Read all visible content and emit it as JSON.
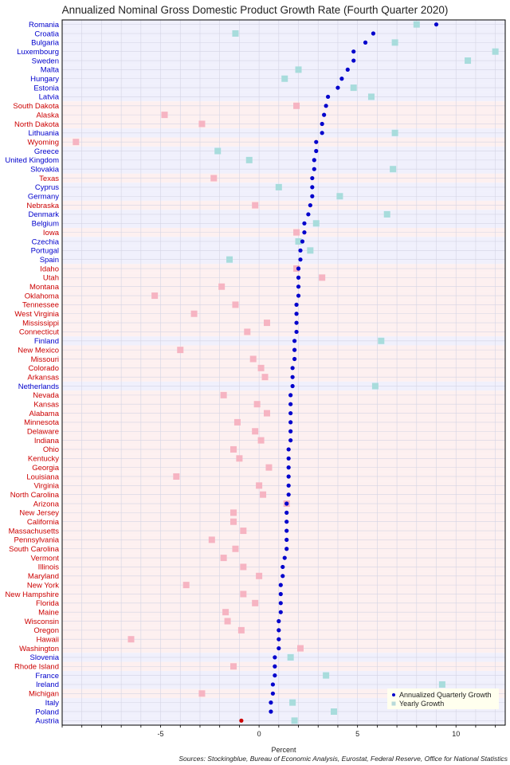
{
  "chart_data": {
    "type": "scatter",
    "title": "Annualized Nominal Gross Domestic Product Growth Rate (Fourth Quarter 2020)",
    "xlabel": "Percent",
    "source": "Sources: Stockingblue, Bureau of Economic Analysis, Eurostat, Federal Reserve, Office for National Statistics",
    "xlim": [
      -10,
      12.5
    ],
    "xticks": [
      -5,
      0,
      5,
      10
    ],
    "grid": true,
    "legend_position": "bottom-right",
    "colors": {
      "country_text": "#0000cc",
      "state_text": "#cc0000",
      "country_band": "#f0f0fc",
      "state_band": "#fdf0f0",
      "quarterly_point": "#0000cc",
      "highlight_point": "#cc0000",
      "yearly_country": "#a8dcdc",
      "yearly_state": "#f6b4c2"
    },
    "series": [
      {
        "name": "Annualized Quarterly Growth",
        "marker": "circle"
      },
      {
        "name": "Yearly Growth",
        "marker": "square"
      }
    ],
    "rows": [
      {
        "label": "Romania",
        "kind": "country",
        "quarterly": 9.0,
        "yearly": 8.0
      },
      {
        "label": "Croatia",
        "kind": "country",
        "quarterly": 5.8,
        "yearly": -1.2
      },
      {
        "label": "Bulgaria",
        "kind": "country",
        "quarterly": 5.4,
        "yearly": 6.9
      },
      {
        "label": "Luxembourg",
        "kind": "country",
        "quarterly": 4.8,
        "yearly": 12.0
      },
      {
        "label": "Sweden",
        "kind": "country",
        "quarterly": 4.8,
        "yearly": 10.6
      },
      {
        "label": "Malta",
        "kind": "country",
        "quarterly": 4.5,
        "yearly": 2.0
      },
      {
        "label": "Hungary",
        "kind": "country",
        "quarterly": 4.2,
        "yearly": 1.3
      },
      {
        "label": "Estonia",
        "kind": "country",
        "quarterly": 4.0,
        "yearly": 4.8
      },
      {
        "label": "Latvia",
        "kind": "country",
        "quarterly": 3.5,
        "yearly": 5.7
      },
      {
        "label": "South Dakota",
        "kind": "state",
        "quarterly": 3.4,
        "yearly": 1.9
      },
      {
        "label": "Alaska",
        "kind": "state",
        "quarterly": 3.3,
        "yearly": -4.8
      },
      {
        "label": "North Dakota",
        "kind": "state",
        "quarterly": 3.2,
        "yearly": -2.9
      },
      {
        "label": "Lithuania",
        "kind": "country",
        "quarterly": 3.2,
        "yearly": 6.9
      },
      {
        "label": "Wyoming",
        "kind": "state",
        "quarterly": 2.9,
        "yearly": -9.3
      },
      {
        "label": "Greece",
        "kind": "country",
        "quarterly": 2.9,
        "yearly": -2.1
      },
      {
        "label": "United Kingdom",
        "kind": "country",
        "quarterly": 2.8,
        "yearly": -0.5
      },
      {
        "label": "Slovakia",
        "kind": "country",
        "quarterly": 2.8,
        "yearly": 6.8
      },
      {
        "label": "Texas",
        "kind": "state",
        "quarterly": 2.7,
        "yearly": -2.3
      },
      {
        "label": "Cyprus",
        "kind": "country",
        "quarterly": 2.7,
        "yearly": 1.0
      },
      {
        "label": "Germany",
        "kind": "country",
        "quarterly": 2.7,
        "yearly": 4.1
      },
      {
        "label": "Nebraska",
        "kind": "state",
        "quarterly": 2.6,
        "yearly": -0.2
      },
      {
        "label": "Denmark",
        "kind": "country",
        "quarterly": 2.5,
        "yearly": 6.5
      },
      {
        "label": "Belgium",
        "kind": "country",
        "quarterly": 2.3,
        "yearly": 2.9
      },
      {
        "label": "Iowa",
        "kind": "state",
        "quarterly": 2.3,
        "yearly": 1.9
      },
      {
        "label": "Czechia",
        "kind": "country",
        "quarterly": 2.2,
        "yearly": 2.0
      },
      {
        "label": "Portugal",
        "kind": "country",
        "quarterly": 2.1,
        "yearly": 2.6
      },
      {
        "label": "Spain",
        "kind": "country",
        "quarterly": 2.1,
        "yearly": -1.5
      },
      {
        "label": "Idaho",
        "kind": "state",
        "quarterly": 2.0,
        "yearly": 1.9
      },
      {
        "label": "Utah",
        "kind": "state",
        "quarterly": 2.0,
        "yearly": 3.2
      },
      {
        "label": "Montana",
        "kind": "state",
        "quarterly": 2.0,
        "yearly": -1.9
      },
      {
        "label": "Oklahoma",
        "kind": "state",
        "quarterly": 2.0,
        "yearly": -5.3
      },
      {
        "label": "Tennessee",
        "kind": "state",
        "quarterly": 1.9,
        "yearly": -1.2
      },
      {
        "label": "West Virginia",
        "kind": "state",
        "quarterly": 1.9,
        "yearly": -3.3
      },
      {
        "label": "Mississippi",
        "kind": "state",
        "quarterly": 1.9,
        "yearly": 0.4
      },
      {
        "label": "Connecticut",
        "kind": "state",
        "quarterly": 1.9,
        "yearly": -0.6
      },
      {
        "label": "Finland",
        "kind": "country",
        "quarterly": 1.8,
        "yearly": 6.2
      },
      {
        "label": "New Mexico",
        "kind": "state",
        "quarterly": 1.8,
        "yearly": -4.0
      },
      {
        "label": "Missouri",
        "kind": "state",
        "quarterly": 1.8,
        "yearly": -0.3
      },
      {
        "label": "Colorado",
        "kind": "state",
        "quarterly": 1.7,
        "yearly": 0.1
      },
      {
        "label": "Arkansas",
        "kind": "state",
        "quarterly": 1.7,
        "yearly": 0.3
      },
      {
        "label": "Netherlands",
        "kind": "country",
        "quarterly": 1.7,
        "yearly": 5.9
      },
      {
        "label": "Nevada",
        "kind": "state",
        "quarterly": 1.6,
        "yearly": -1.8
      },
      {
        "label": "Kansas",
        "kind": "state",
        "quarterly": 1.6,
        "yearly": -0.1
      },
      {
        "label": "Alabama",
        "kind": "state",
        "quarterly": 1.6,
        "yearly": 0.4
      },
      {
        "label": "Minnesota",
        "kind": "state",
        "quarterly": 1.6,
        "yearly": -1.1
      },
      {
        "label": "Delaware",
        "kind": "state",
        "quarterly": 1.6,
        "yearly": -0.2
      },
      {
        "label": "Indiana",
        "kind": "state",
        "quarterly": 1.6,
        "yearly": 0.1
      },
      {
        "label": "Ohio",
        "kind": "state",
        "quarterly": 1.5,
        "yearly": -1.3
      },
      {
        "label": "Kentucky",
        "kind": "state",
        "quarterly": 1.5,
        "yearly": -1.0
      },
      {
        "label": "Georgia",
        "kind": "state",
        "quarterly": 1.5,
        "yearly": 0.5
      },
      {
        "label": "Louisiana",
        "kind": "state",
        "quarterly": 1.5,
        "yearly": -4.2
      },
      {
        "label": "Virginia",
        "kind": "state",
        "quarterly": 1.5,
        "yearly": 0.0
      },
      {
        "label": "North Carolina",
        "kind": "state",
        "quarterly": 1.5,
        "yearly": 0.2
      },
      {
        "label": "Arizona",
        "kind": "state",
        "quarterly": 1.4,
        "yearly": 1.4
      },
      {
        "label": "New Jersey",
        "kind": "state",
        "quarterly": 1.4,
        "yearly": -1.3
      },
      {
        "label": "California",
        "kind": "state",
        "quarterly": 1.4,
        "yearly": -1.3
      },
      {
        "label": "Massachusetts",
        "kind": "state",
        "quarterly": 1.4,
        "yearly": -0.8
      },
      {
        "label": "Pennsylvania",
        "kind": "state",
        "quarterly": 1.4,
        "yearly": -2.4
      },
      {
        "label": "South Carolina",
        "kind": "state",
        "quarterly": 1.4,
        "yearly": -1.2
      },
      {
        "label": "Vermont",
        "kind": "state",
        "quarterly": 1.3,
        "yearly": -1.8
      },
      {
        "label": "Illinois",
        "kind": "state",
        "quarterly": 1.2,
        "yearly": -0.8
      },
      {
        "label": "Maryland",
        "kind": "state",
        "quarterly": 1.2,
        "yearly": 0.0
      },
      {
        "label": "New York",
        "kind": "state",
        "quarterly": 1.1,
        "yearly": -3.7
      },
      {
        "label": "New Hampshire",
        "kind": "state",
        "quarterly": 1.1,
        "yearly": -0.8
      },
      {
        "label": "Florida",
        "kind": "state",
        "quarterly": 1.1,
        "yearly": -0.2
      },
      {
        "label": "Maine",
        "kind": "state",
        "quarterly": 1.1,
        "yearly": -1.7
      },
      {
        "label": "Wisconsin",
        "kind": "state",
        "quarterly": 1.0,
        "yearly": -1.6
      },
      {
        "label": "Oregon",
        "kind": "state",
        "quarterly": 1.0,
        "yearly": -0.9
      },
      {
        "label": "Hawaii",
        "kind": "state",
        "quarterly": 1.0,
        "yearly": -6.5
      },
      {
        "label": "Washington",
        "kind": "state",
        "quarterly": 1.0,
        "yearly": 2.1
      },
      {
        "label": "Slovenia",
        "kind": "country",
        "quarterly": 0.8,
        "yearly": 1.6
      },
      {
        "label": "Rhode Island",
        "kind": "state",
        "quarterly": 0.8,
        "yearly": -1.3
      },
      {
        "label": "France",
        "kind": "country",
        "quarterly": 0.8,
        "yearly": 3.4
      },
      {
        "label": "Ireland",
        "kind": "country",
        "quarterly": 0.7,
        "yearly": 9.3
      },
      {
        "label": "Michigan",
        "kind": "state",
        "quarterly": 0.7,
        "yearly": -2.9
      },
      {
        "label": "Italy",
        "kind": "country",
        "quarterly": 0.6,
        "yearly": 1.7
      },
      {
        "label": "Poland",
        "kind": "country",
        "quarterly": 0.6,
        "yearly": 3.8
      },
      {
        "label": "Austria",
        "kind": "country",
        "quarterly": -0.9,
        "yearly": 1.8
      }
    ]
  }
}
